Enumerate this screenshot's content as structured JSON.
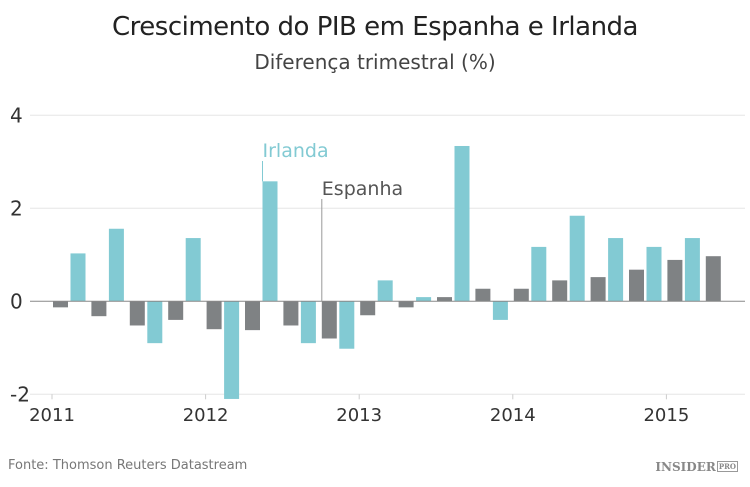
{
  "title": "Crescimento do PIB em Espanha e Irlanda",
  "subtitle": "Diferença trimestral (%)",
  "source": "Fonte:  Thomson Reuters Datastream",
  "logo": {
    "text": "INSIDER",
    "badge": "PRO"
  },
  "chart_data": {
    "type": "bar",
    "title": "Crescimento do PIB em Espanha e Irlanda",
    "subtitle": "Diferença trimestral (%)",
    "xlabel": "",
    "ylabel": "",
    "ylim": [
      -2,
      4
    ],
    "yticks": [
      "4",
      "2",
      "0",
      "-2"
    ],
    "ytick_values": [
      4,
      2,
      0,
      -2
    ],
    "xticks": [
      "2011",
      "2012",
      "2013",
      "2014",
      "2015"
    ],
    "grid": true,
    "categories": [
      "2011 T1",
      "2011 T2",
      "2011 T3",
      "2011 T4",
      "2012 T1",
      "2012 T2",
      "2012 T3",
      "2012 T4",
      "2013 T1",
      "2013 T2",
      "2013 T3",
      "2013 T4",
      "2014 T1",
      "2014 T2",
      "2014 T3",
      "2014 T4",
      "2015 T1",
      "2015 T2"
    ],
    "series": [
      {
        "name": "Espanha",
        "color": "#7f8284",
        "values": [
          -0.13,
          -0.32,
          -0.52,
          -0.4,
          -0.6,
          -0.62,
          -0.52,
          -0.8,
          -0.3,
          -0.13,
          0.09,
          0.27,
          0.27,
          0.45,
          0.52,
          0.68,
          0.89,
          0.97
        ]
      },
      {
        "name": "Irlanda",
        "color": "#82cad3",
        "values": [
          1.03,
          1.56,
          -0.9,
          1.36,
          -2.1,
          2.58,
          -0.9,
          -1.02,
          0.45,
          0.09,
          3.34,
          -0.4,
          1.17,
          1.84,
          1.36,
          1.17,
          1.36,
          null
        ]
      }
    ],
    "annotations": [
      {
        "text": "Irlanda",
        "series": "Irlanda",
        "category": "2012 T2"
      },
      {
        "text": "Espanha",
        "series": "Espanha",
        "category": "2012 T4"
      }
    ]
  }
}
